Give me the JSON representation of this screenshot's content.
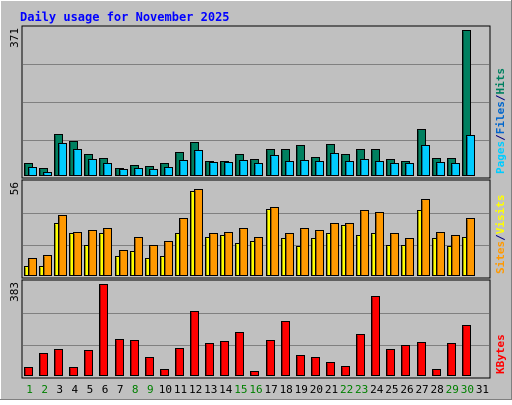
{
  "chart_data": {
    "type": "bar",
    "title": "Daily usage for November 2025",
    "categories": [
      "1",
      "2",
      "3",
      "4",
      "5",
      "6",
      "7",
      "8",
      "9",
      "10",
      "11",
      "12",
      "13",
      "14",
      "15",
      "16",
      "17",
      "18",
      "19",
      "20",
      "21",
      "22",
      "23",
      "24",
      "25",
      "26",
      "27",
      "28",
      "29",
      "30",
      "31"
    ],
    "weekend_days": [
      "1",
      "2",
      "8",
      "9",
      "15",
      "16",
      "22",
      "23",
      "29",
      "30"
    ],
    "panels": [
      {
        "id": "top",
        "ymax_label": "371",
        "ymax": 371,
        "right_label": [
          "Pages",
          "Files",
          "Hits"
        ],
        "series": [
          {
            "name": "Hits",
            "color": "#008060",
            "values": [
              34,
              21,
              107,
              88,
              56,
              46,
              21,
              29,
              25,
              33,
              61,
              86,
              39,
              39,
              55,
              42,
              68,
              68,
              78,
              48,
              81,
              56,
              69,
              68,
              42,
              39,
              119,
              45,
              45,
              371,
              null
            ]
          },
          {
            "name": "Files",
            "color": "#00ccff",
            "values": [
              24,
              11,
              85,
              69,
              44,
              34,
              17,
              20,
              18,
              22,
              40,
              67,
              35,
              36,
              40,
              32,
              54,
              38,
              40,
              37,
              59,
              38,
              44,
              38,
              32,
              33,
              79,
              35,
              34,
              104,
              null
            ]
          }
        ]
      },
      {
        "id": "middle",
        "ymax_label": "56",
        "ymax": 56,
        "right_label": [
          "Sites",
          "Visits"
        ],
        "series": [
          {
            "name": "Visits",
            "color": "#ffff00",
            "values": [
              6,
              6,
              32,
              26,
              19,
              26,
              12,
              15,
              11,
              12,
              26,
              52,
              24,
              25,
              20,
              21,
              41,
              23,
              18,
              23,
              26,
              31,
              25,
              26,
              19,
              19,
              40,
              23,
              18,
              24,
              null
            ]
          },
          {
            "name": "Sites",
            "color": "#ff9900",
            "values": [
              11,
              13,
              37,
              27,
              28,
              29,
              16,
              24,
              19,
              21,
              35,
              53,
              26,
              27,
              29,
              24,
              42,
              26,
              29,
              28,
              32,
              32,
              40,
              39,
              26,
              23,
              47,
              27,
              25,
              35,
              null
            ]
          }
        ]
      },
      {
        "id": "bottom",
        "ymax_label": "383",
        "ymax": 383,
        "right_label": [
          "KBytes"
        ],
        "series": [
          {
            "name": "KBytes",
            "color": "#ff0000",
            "values": [
              36,
              96,
              112,
              36,
              108,
              383,
              155,
              151,
              80,
              31,
              117,
              270,
              136,
              144,
              182,
              20,
              150,
              229,
              89,
              80,
              59,
              42,
              176,
              334,
              111,
              129,
              140,
              30,
              136,
              213,
              null
            ]
          }
        ]
      }
    ]
  }
}
